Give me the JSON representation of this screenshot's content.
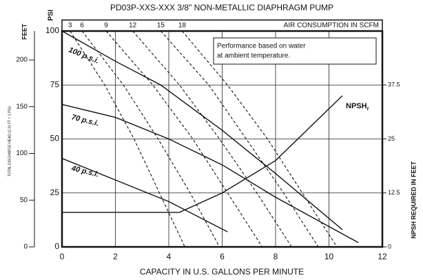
{
  "chart_data": {
    "type": "line",
    "title": "PD03P-XXS-XXX  3/8\" NON-METALLIC DIAPHRAGM PUMP",
    "x_label": "CAPACITY IN U.S. GALLONS PER MINUTE",
    "y_label": "PSI",
    "y_feet_label": "FEET",
    "y_head_label": "TOTAL DISCHARGE HEAD (2.31 FT = 1 PSI)",
    "y2_label": "NPSH REQUIRED IN FEET",
    "air_label": "AIR CONSUMPTION IN SCFM",
    "note": [
      "Performance based on water",
      "at ambient temperature."
    ],
    "xlim": [
      0,
      12
    ],
    "xticks": [
      0,
      2,
      4,
      6,
      8,
      10,
      12
    ],
    "ylim": [
      0,
      100
    ],
    "yticks": [
      0,
      25,
      50,
      75,
      100
    ],
    "y_feet_lim": [
      0,
      231
    ],
    "y_feet_ticks": [
      0,
      50,
      100,
      150,
      200
    ],
    "y2lim": [
      0,
      50
    ],
    "y2ticks": [
      0,
      12.5,
      25,
      37.5
    ],
    "grid": true,
    "series": [
      {
        "name": "100 p.s.i.",
        "color": "#111",
        "x": [
          0,
          2,
          3.7,
          6,
          8,
          10.5
        ],
        "values": [
          100,
          86,
          75,
          54,
          34,
          8
        ]
      },
      {
        "name": "70 p.s.i.",
        "color": "#111",
        "x": [
          0,
          2,
          4,
          6,
          8,
          11.1
        ],
        "values": [
          66,
          60,
          50,
          38,
          23,
          2
        ]
      },
      {
        "name": "40 p.s.i.",
        "color": "#111",
        "x": [
          0,
          2,
          4,
          6.2
        ],
        "values": [
          41,
          31,
          21,
          7
        ]
      },
      {
        "name": "NPSH",
        "name_sub": "r",
        "color": "#111",
        "axis": "y2",
        "x": [
          0,
          4.4,
          6,
          8,
          10.5
        ],
        "values": [
          8,
          8,
          12.5,
          20,
          35
        ]
      }
    ],
    "air_lines": [
      {
        "label": 3,
        "x": [
          0.3,
          1.6,
          2.7,
          3.65,
          4.6
        ],
        "values": [
          100,
          75,
          50,
          25,
          0
        ]
      },
      {
        "label": 6,
        "x": [
          0.75,
          2.3,
          3.6,
          4.8,
          5.9
        ],
        "values": [
          100,
          75,
          50,
          25,
          0
        ]
      },
      {
        "label": 9,
        "x": [
          1.65,
          3.4,
          4.9,
          6.2,
          7.5
        ],
        "values": [
          100,
          75,
          50,
          25,
          0
        ]
      },
      {
        "label": 12,
        "x": [
          2.65,
          4.4,
          5.9,
          7.3,
          8.6
        ],
        "values": [
          100,
          75,
          50,
          25,
          0
        ]
      },
      {
        "label": 15,
        "x": [
          3.7,
          5.5,
          6.9,
          8.3,
          9.6
        ],
        "values": [
          100,
          75,
          50,
          25,
          0
        ]
      },
      {
        "label": 18,
        "x": [
          4.5,
          6.2,
          7.7,
          9.0,
          10.3
        ],
        "values": [
          100,
          75,
          50,
          25,
          0
        ]
      }
    ]
  }
}
